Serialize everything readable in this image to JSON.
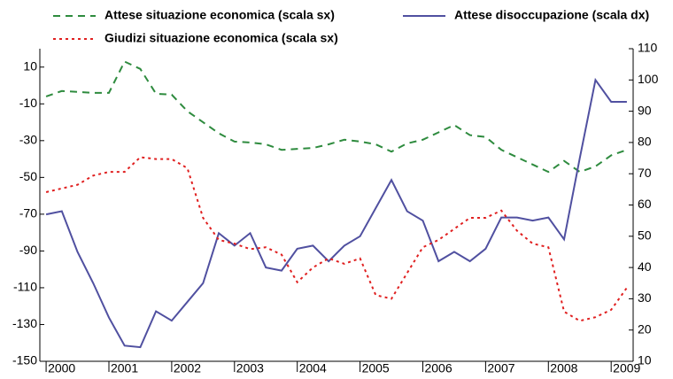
{
  "chart_data": {
    "type": "line",
    "x": [
      2000,
      2000.25,
      2000.5,
      2000.75,
      2001,
      2001.25,
      2001.5,
      2001.75,
      2002,
      2002.25,
      2002.5,
      2002.75,
      2003,
      2003.25,
      2003.5,
      2003.75,
      2004,
      2004.25,
      2004.5,
      2004.75,
      2005,
      2005.25,
      2005.5,
      2005.75,
      2006,
      2006.25,
      2006.5,
      2006.75,
      2007,
      2007.25,
      2007.5,
      2007.75,
      2008,
      2008.25,
      2008.5,
      2008.75,
      2009,
      2009.25
    ],
    "series": [
      {
        "name": "Attese situazione economica (scala sx)",
        "color": "#2e8b3e",
        "dash": "8,6",
        "axis": "y",
        "values": [
          -6,
          -3,
          -3.5,
          -4,
          -4,
          13,
          9,
          -4.5,
          -5,
          -14,
          -20,
          -26,
          -30.5,
          -31,
          -32,
          -35,
          -34.5,
          -34,
          -32,
          -29.5,
          -30.5,
          -32,
          -36,
          -31.5,
          -29.5,
          -25.5,
          -21.5,
          -27,
          -28,
          -35,
          -39,
          -43,
          -47,
          -41,
          -47,
          -44,
          -38,
          -35
        ]
      },
      {
        "name": "Attese disoccupazione (scala dx)",
        "color": "#5050a0",
        "dash": "none",
        "axis": "y2",
        "values": [
          57,
          58,
          45,
          35,
          24,
          15,
          14.5,
          26,
          23,
          29,
          35,
          51,
          47,
          51,
          40,
          39,
          46,
          47,
          42,
          47,
          50,
          59,
          68,
          58,
          55,
          42,
          45,
          42,
          46,
          56,
          56,
          55,
          56,
          49,
          75,
          100,
          93,
          93
        ]
      },
      {
        "name": "Giudizi situazione economica (scala sx)",
        "color": "#e02020",
        "dash": "3,4",
        "axis": "y",
        "values": [
          -58,
          -56,
          -54,
          -49,
          -47,
          -47,
          -39,
          -40,
          -40,
          -45,
          -72,
          -84,
          -86,
          -89,
          -88,
          -92,
          -107,
          -99,
          -94,
          -97,
          -94,
          -114,
          -116,
          -102,
          -88,
          -84,
          -78,
          -72,
          -72,
          -68,
          -79,
          -86,
          -88,
          -123,
          -128,
          -126,
          -122,
          -110
        ]
      }
    ],
    "xlim": [
      1999.9,
      2009.35
    ],
    "xticks": [
      2000,
      2001,
      2002,
      2003,
      2004,
      2005,
      2006,
      2007,
      2008,
      2009
    ],
    "ylim": [
      -150,
      20
    ],
    "yticks": [
      10,
      -10,
      -30,
      -50,
      -70,
      -90,
      -110,
      -130,
      -150
    ],
    "y2lim": [
      10,
      110
    ],
    "y2ticks": [
      110,
      100,
      90,
      80,
      70,
      60,
      50,
      40,
      30,
      20,
      10
    ]
  }
}
